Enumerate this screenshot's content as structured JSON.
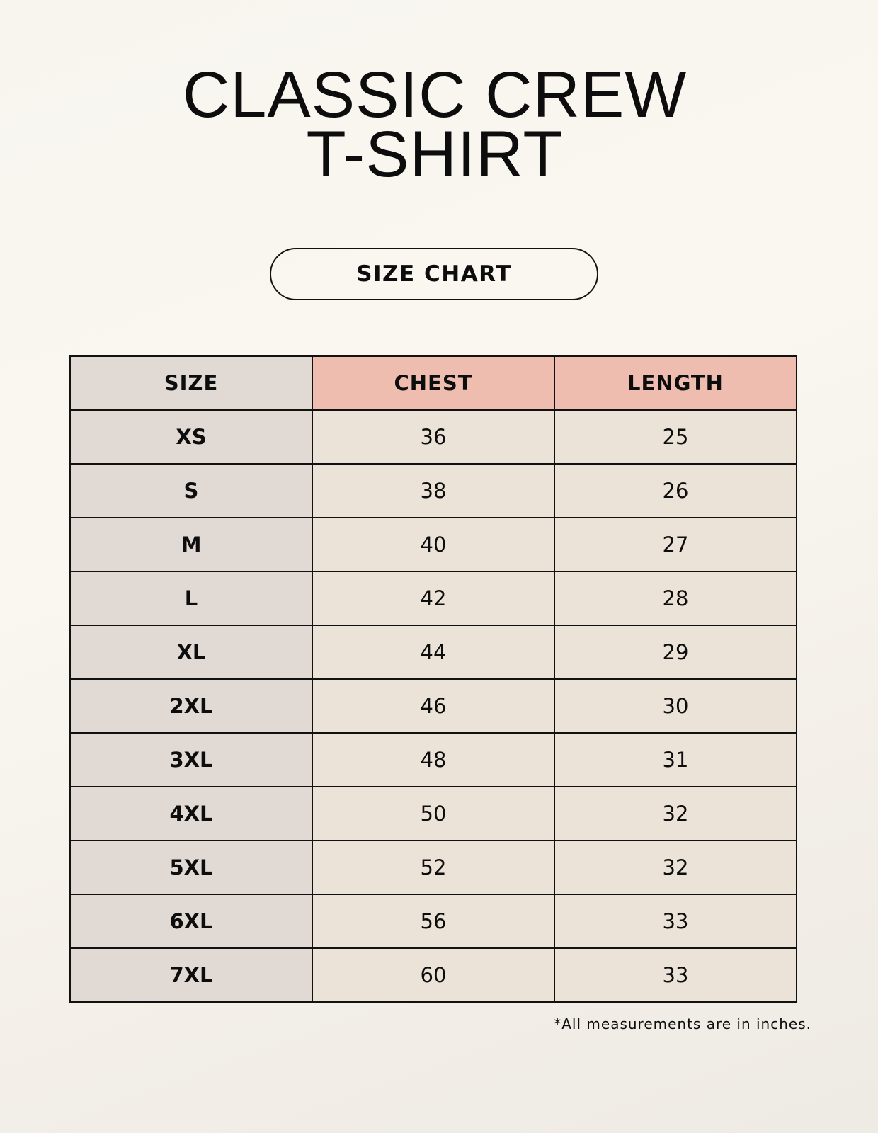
{
  "title_line1": "CLASSIC CREW",
  "title_line2": "T-SHIRT",
  "badge": "SIZE CHART",
  "colors": {
    "size_column": "#e1d9d3",
    "header_accent": "#efbdb0",
    "value_cells": "#ebe3d8"
  },
  "table": {
    "headers": [
      "SIZE",
      "CHEST",
      "LENGTH"
    ],
    "rows": [
      [
        "XS",
        "36",
        "25"
      ],
      [
        "S",
        "38",
        "26"
      ],
      [
        "M",
        "40",
        "27"
      ],
      [
        "L",
        "42",
        "28"
      ],
      [
        "XL",
        "44",
        "29"
      ],
      [
        "2XL",
        "46",
        "30"
      ],
      [
        "3XL",
        "48",
        "31"
      ],
      [
        "4XL",
        "50",
        "32"
      ],
      [
        "5XL",
        "52",
        "32"
      ],
      [
        "6XL",
        "56",
        "33"
      ],
      [
        "7XL",
        "60",
        "33"
      ]
    ]
  },
  "note": "*All measurements are in inches."
}
